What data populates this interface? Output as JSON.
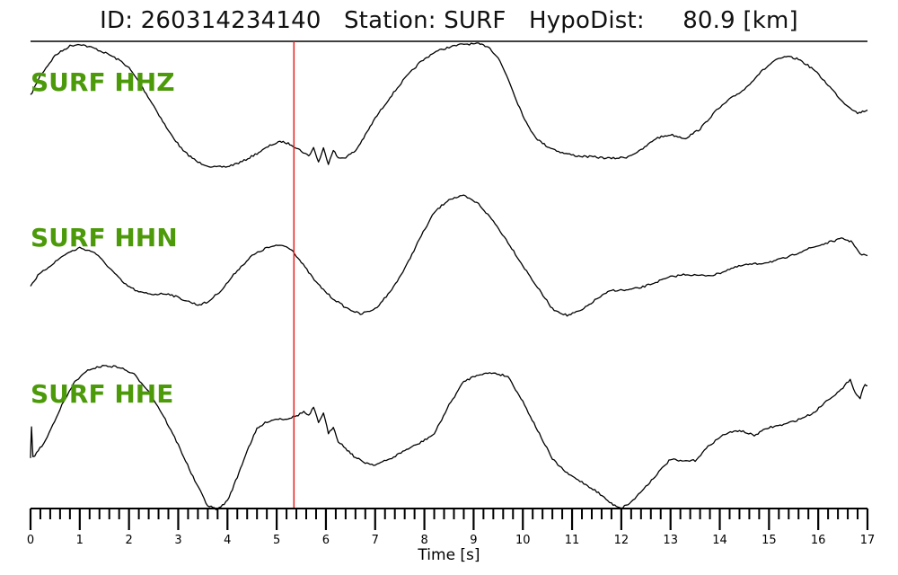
{
  "header": {
    "title": "ID: 260314234140   Station: SURF   HypoDist:     80.9 [km]"
  },
  "colors": {
    "trace": "#000000",
    "label": "#4c9a0a",
    "pick": "#e8211f",
    "axis": "#000000"
  },
  "chart_data": {
    "type": "line",
    "title": "ID: 260314234140   Station: SURF   HypoDist:     80.9 [km]",
    "xlabel": "Time [s]",
    "ylabel": "",
    "xlim": [
      0,
      17
    ],
    "x_ticks": [
      "0",
      "1",
      "2",
      "3",
      "4",
      "5",
      "6",
      "7",
      "8",
      "9",
      "10",
      "11",
      "12",
      "13",
      "14",
      "15",
      "16",
      "17"
    ],
    "pick_time": 5.35,
    "series": [
      {
        "name": "SURF HHZ",
        "points": [
          [
            0.0,
            0.18
          ],
          [
            0.2,
            0.5
          ],
          [
            0.5,
            0.82
          ],
          [
            0.8,
            0.97
          ],
          [
            1.0,
            1.0
          ],
          [
            1.3,
            0.93
          ],
          [
            1.6,
            0.83
          ],
          [
            1.85,
            0.72
          ],
          [
            2.0,
            0.62
          ],
          [
            2.2,
            0.4
          ],
          [
            2.5,
            0.02
          ],
          [
            2.8,
            -0.38
          ],
          [
            3.1,
            -0.7
          ],
          [
            3.4,
            -0.88
          ],
          [
            3.7,
            -0.96
          ],
          [
            4.0,
            -0.95
          ],
          [
            4.3,
            -0.87
          ],
          [
            4.6,
            -0.74
          ],
          [
            4.9,
            -0.6
          ],
          [
            5.1,
            -0.55
          ],
          [
            5.3,
            -0.6
          ],
          [
            5.5,
            -0.7
          ],
          [
            5.65,
            -0.78
          ],
          [
            5.75,
            -0.65
          ],
          [
            5.85,
            -0.88
          ],
          [
            5.95,
            -0.66
          ],
          [
            6.05,
            -0.9
          ],
          [
            6.15,
            -0.68
          ],
          [
            6.25,
            -0.82
          ],
          [
            6.4,
            -0.8
          ],
          [
            6.6,
            -0.7
          ],
          [
            6.8,
            -0.45
          ],
          [
            7.0,
            -0.18
          ],
          [
            7.3,
            0.15
          ],
          [
            7.6,
            0.45
          ],
          [
            7.9,
            0.7
          ],
          [
            8.2,
            0.87
          ],
          [
            8.5,
            0.95
          ],
          [
            8.8,
            1.0
          ],
          [
            9.1,
            1.0
          ],
          [
            9.3,
            0.96
          ],
          [
            9.5,
            0.78
          ],
          [
            9.7,
            0.45
          ],
          [
            9.9,
            0.05
          ],
          [
            10.1,
            -0.3
          ],
          [
            10.3,
            -0.52
          ],
          [
            10.5,
            -0.63
          ],
          [
            10.8,
            -0.73
          ],
          [
            11.1,
            -0.78
          ],
          [
            11.5,
            -0.8
          ],
          [
            11.8,
            -0.82
          ],
          [
            12.1,
            -0.8
          ],
          [
            12.4,
            -0.69
          ],
          [
            12.7,
            -0.5
          ],
          [
            13.0,
            -0.44
          ],
          [
            13.3,
            -0.5
          ],
          [
            13.6,
            -0.35
          ],
          [
            13.9,
            -0.08
          ],
          [
            14.2,
            0.12
          ],
          [
            14.5,
            0.28
          ],
          [
            14.8,
            0.53
          ],
          [
            15.1,
            0.73
          ],
          [
            15.35,
            0.8
          ],
          [
            15.6,
            0.76
          ],
          [
            15.9,
            0.6
          ],
          [
            16.2,
            0.35
          ],
          [
            16.5,
            0.08
          ],
          [
            16.8,
            -0.1
          ],
          [
            17.0,
            -0.05
          ]
        ]
      },
      {
        "name": "SURF HHN",
        "points": [
          [
            0.0,
            -0.35
          ],
          [
            0.15,
            -0.2
          ],
          [
            0.4,
            -0.05
          ],
          [
            0.7,
            0.12
          ],
          [
            1.0,
            0.22
          ],
          [
            1.3,
            0.15
          ],
          [
            1.6,
            -0.08
          ],
          [
            1.9,
            -0.32
          ],
          [
            2.2,
            -0.45
          ],
          [
            2.5,
            -0.48
          ],
          [
            2.8,
            -0.47
          ],
          [
            3.1,
            -0.56
          ],
          [
            3.4,
            -0.64
          ],
          [
            3.6,
            -0.6
          ],
          [
            3.9,
            -0.4
          ],
          [
            4.2,
            -0.12
          ],
          [
            4.5,
            0.1
          ],
          [
            4.8,
            0.22
          ],
          [
            5.1,
            0.26
          ],
          [
            5.3,
            0.2
          ],
          [
            5.5,
            0.0
          ],
          [
            5.8,
            -0.3
          ],
          [
            6.1,
            -0.52
          ],
          [
            6.4,
            -0.68
          ],
          [
            6.7,
            -0.78
          ],
          [
            7.0,
            -0.7
          ],
          [
            7.3,
            -0.45
          ],
          [
            7.6,
            -0.1
          ],
          [
            7.9,
            0.35
          ],
          [
            8.2,
            0.75
          ],
          [
            8.5,
            0.95
          ],
          [
            8.8,
            1.0
          ],
          [
            9.1,
            0.88
          ],
          [
            9.4,
            0.62
          ],
          [
            9.7,
            0.3
          ],
          [
            10.0,
            -0.05
          ],
          [
            10.3,
            -0.38
          ],
          [
            10.6,
            -0.7
          ],
          [
            10.9,
            -0.8
          ],
          [
            11.2,
            -0.72
          ],
          [
            11.5,
            -0.55
          ],
          [
            11.8,
            -0.42
          ],
          [
            12.1,
            -0.42
          ],
          [
            12.4,
            -0.38
          ],
          [
            12.7,
            -0.3
          ],
          [
            13.0,
            -0.22
          ],
          [
            13.3,
            -0.18
          ],
          [
            13.6,
            -0.2
          ],
          [
            13.9,
            -0.19
          ],
          [
            14.2,
            -0.1
          ],
          [
            14.5,
            -0.04
          ],
          [
            14.8,
            -0.02
          ],
          [
            15.1,
            0.02
          ],
          [
            15.4,
            0.08
          ],
          [
            15.7,
            0.18
          ],
          [
            16.0,
            0.25
          ],
          [
            16.3,
            0.32
          ],
          [
            16.5,
            0.36
          ],
          [
            16.7,
            0.3
          ],
          [
            16.85,
            0.12
          ],
          [
            17.0,
            0.1
          ]
        ]
      },
      {
        "name": "SURF HHE",
        "points": [
          [
            0.0,
            -0.28
          ],
          [
            0.02,
            0.15
          ],
          [
            0.05,
            -0.28
          ],
          [
            0.3,
            -0.05
          ],
          [
            0.6,
            0.4
          ],
          [
            0.9,
            0.78
          ],
          [
            1.2,
            0.95
          ],
          [
            1.5,
            1.0
          ],
          [
            1.8,
            0.98
          ],
          [
            2.1,
            0.88
          ],
          [
            2.4,
            0.65
          ],
          [
            2.7,
            0.3
          ],
          [
            3.0,
            -0.1
          ],
          [
            3.3,
            -0.55
          ],
          [
            3.6,
            -0.95
          ],
          [
            3.8,
            -1.0
          ],
          [
            4.0,
            -0.88
          ],
          [
            4.2,
            -0.55
          ],
          [
            4.4,
            -0.18
          ],
          [
            4.6,
            0.12
          ],
          [
            4.8,
            0.22
          ],
          [
            5.0,
            0.26
          ],
          [
            5.2,
            0.26
          ],
          [
            5.4,
            0.3
          ],
          [
            5.55,
            0.36
          ],
          [
            5.65,
            0.3
          ],
          [
            5.75,
            0.42
          ],
          [
            5.85,
            0.2
          ],
          [
            5.95,
            0.35
          ],
          [
            6.05,
            0.05
          ],
          [
            6.15,
            0.15
          ],
          [
            6.25,
            -0.05
          ],
          [
            6.4,
            -0.15
          ],
          [
            6.6,
            -0.28
          ],
          [
            6.8,
            -0.35
          ],
          [
            7.0,
            -0.38
          ],
          [
            7.3,
            -0.3
          ],
          [
            7.6,
            -0.18
          ],
          [
            7.9,
            -0.08
          ],
          [
            8.2,
            0.05
          ],
          [
            8.5,
            0.45
          ],
          [
            8.8,
            0.78
          ],
          [
            9.1,
            0.88
          ],
          [
            9.4,
            0.9
          ],
          [
            9.7,
            0.85
          ],
          [
            10.0,
            0.5
          ],
          [
            10.3,
            0.1
          ],
          [
            10.6,
            -0.3
          ],
          [
            10.9,
            -0.5
          ],
          [
            11.2,
            -0.62
          ],
          [
            11.5,
            -0.75
          ],
          [
            11.8,
            -0.92
          ],
          [
            12.0,
            -0.98
          ],
          [
            12.2,
            -0.9
          ],
          [
            12.5,
            -0.68
          ],
          [
            12.8,
            -0.45
          ],
          [
            13.0,
            -0.3
          ],
          [
            13.2,
            -0.33
          ],
          [
            13.5,
            -0.32
          ],
          [
            13.8,
            -0.1
          ],
          [
            14.1,
            0.05
          ],
          [
            14.4,
            0.1
          ],
          [
            14.7,
            0.03
          ],
          [
            15.0,
            0.14
          ],
          [
            15.3,
            0.18
          ],
          [
            15.6,
            0.25
          ],
          [
            15.9,
            0.34
          ],
          [
            16.2,
            0.53
          ],
          [
            16.5,
            0.68
          ],
          [
            16.65,
            0.82
          ],
          [
            16.75,
            0.62
          ],
          [
            16.85,
            0.55
          ],
          [
            16.95,
            0.75
          ],
          [
            17.0,
            0.72
          ]
        ]
      }
    ]
  }
}
